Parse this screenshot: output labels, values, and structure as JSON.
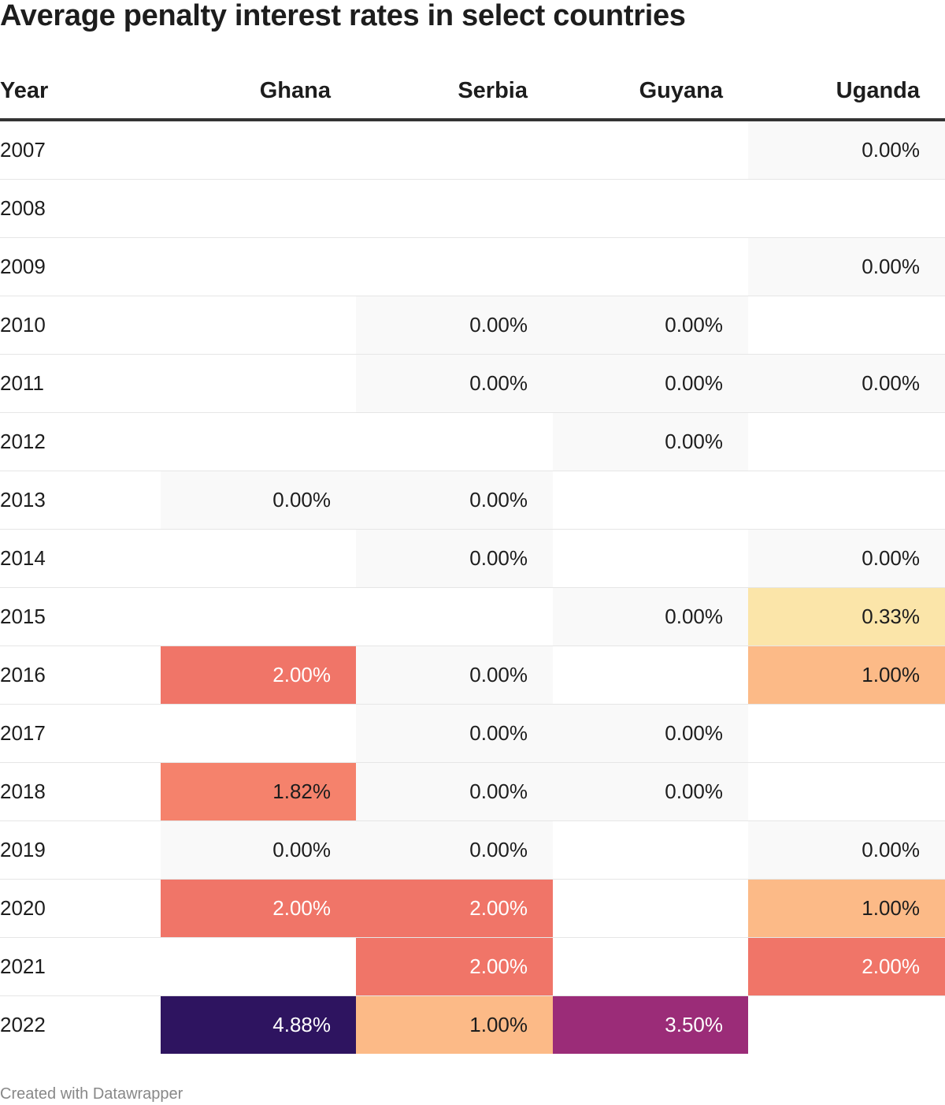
{
  "chart_data": {
    "type": "table",
    "title": "Average penalty interest rates in select countries",
    "columns": [
      "Year",
      "Ghana",
      "Serbia",
      "Guyana",
      "Uganda"
    ],
    "rows": [
      {
        "year": "2007",
        "values": [
          "",
          "",
          "",
          "0.00%"
        ]
      },
      {
        "year": "2008",
        "values": [
          "",
          "",
          "",
          ""
        ]
      },
      {
        "year": "2009",
        "values": [
          "",
          "",
          "",
          "0.00%"
        ]
      },
      {
        "year": "2010",
        "values": [
          "",
          "0.00%",
          "0.00%",
          ""
        ]
      },
      {
        "year": "2011",
        "values": [
          "",
          "0.00%",
          "0.00%",
          "0.00%"
        ]
      },
      {
        "year": "2012",
        "values": [
          "",
          "",
          "0.00%",
          ""
        ]
      },
      {
        "year": "2013",
        "values": [
          "0.00%",
          "0.00%",
          "",
          ""
        ]
      },
      {
        "year": "2014",
        "values": [
          "",
          "0.00%",
          "",
          "0.00%"
        ]
      },
      {
        "year": "2015",
        "values": [
          "",
          "",
          "0.00%",
          "0.33%"
        ]
      },
      {
        "year": "2016",
        "values": [
          "2.00%",
          "0.00%",
          "",
          "1.00%"
        ]
      },
      {
        "year": "2017",
        "values": [
          "",
          "0.00%",
          "0.00%",
          ""
        ]
      },
      {
        "year": "2018",
        "values": [
          "1.82%",
          "0.00%",
          "0.00%",
          ""
        ]
      },
      {
        "year": "2019",
        "values": [
          "0.00%",
          "0.00%",
          "",
          "0.00%"
        ]
      },
      {
        "year": "2020",
        "values": [
          "2.00%",
          "2.00%",
          "",
          "1.00%"
        ]
      },
      {
        "year": "2021",
        "values": [
          "",
          "2.00%",
          "",
          "2.00%"
        ]
      },
      {
        "year": "2022",
        "values": [
          "4.88%",
          "1.00%",
          "3.50%",
          ""
        ]
      }
    ],
    "color_scale": [
      {
        "value": 0,
        "color": "#f9f9f9"
      },
      {
        "value": 0.33,
        "color": "#fbe5a9"
      },
      {
        "value": 1.0,
        "color": "#fcba87"
      },
      {
        "value": 1.82,
        "color": "#f5826c"
      },
      {
        "value": 2.0,
        "color": "#f07568"
      },
      {
        "value": 3.5,
        "color": "#9b2c78"
      },
      {
        "value": 4.88,
        "color": "#2e1460"
      }
    ],
    "dark_text_color": "#1d1d1d",
    "light_text_color": "#ffffff"
  },
  "footer": "Created with Datawrapper"
}
